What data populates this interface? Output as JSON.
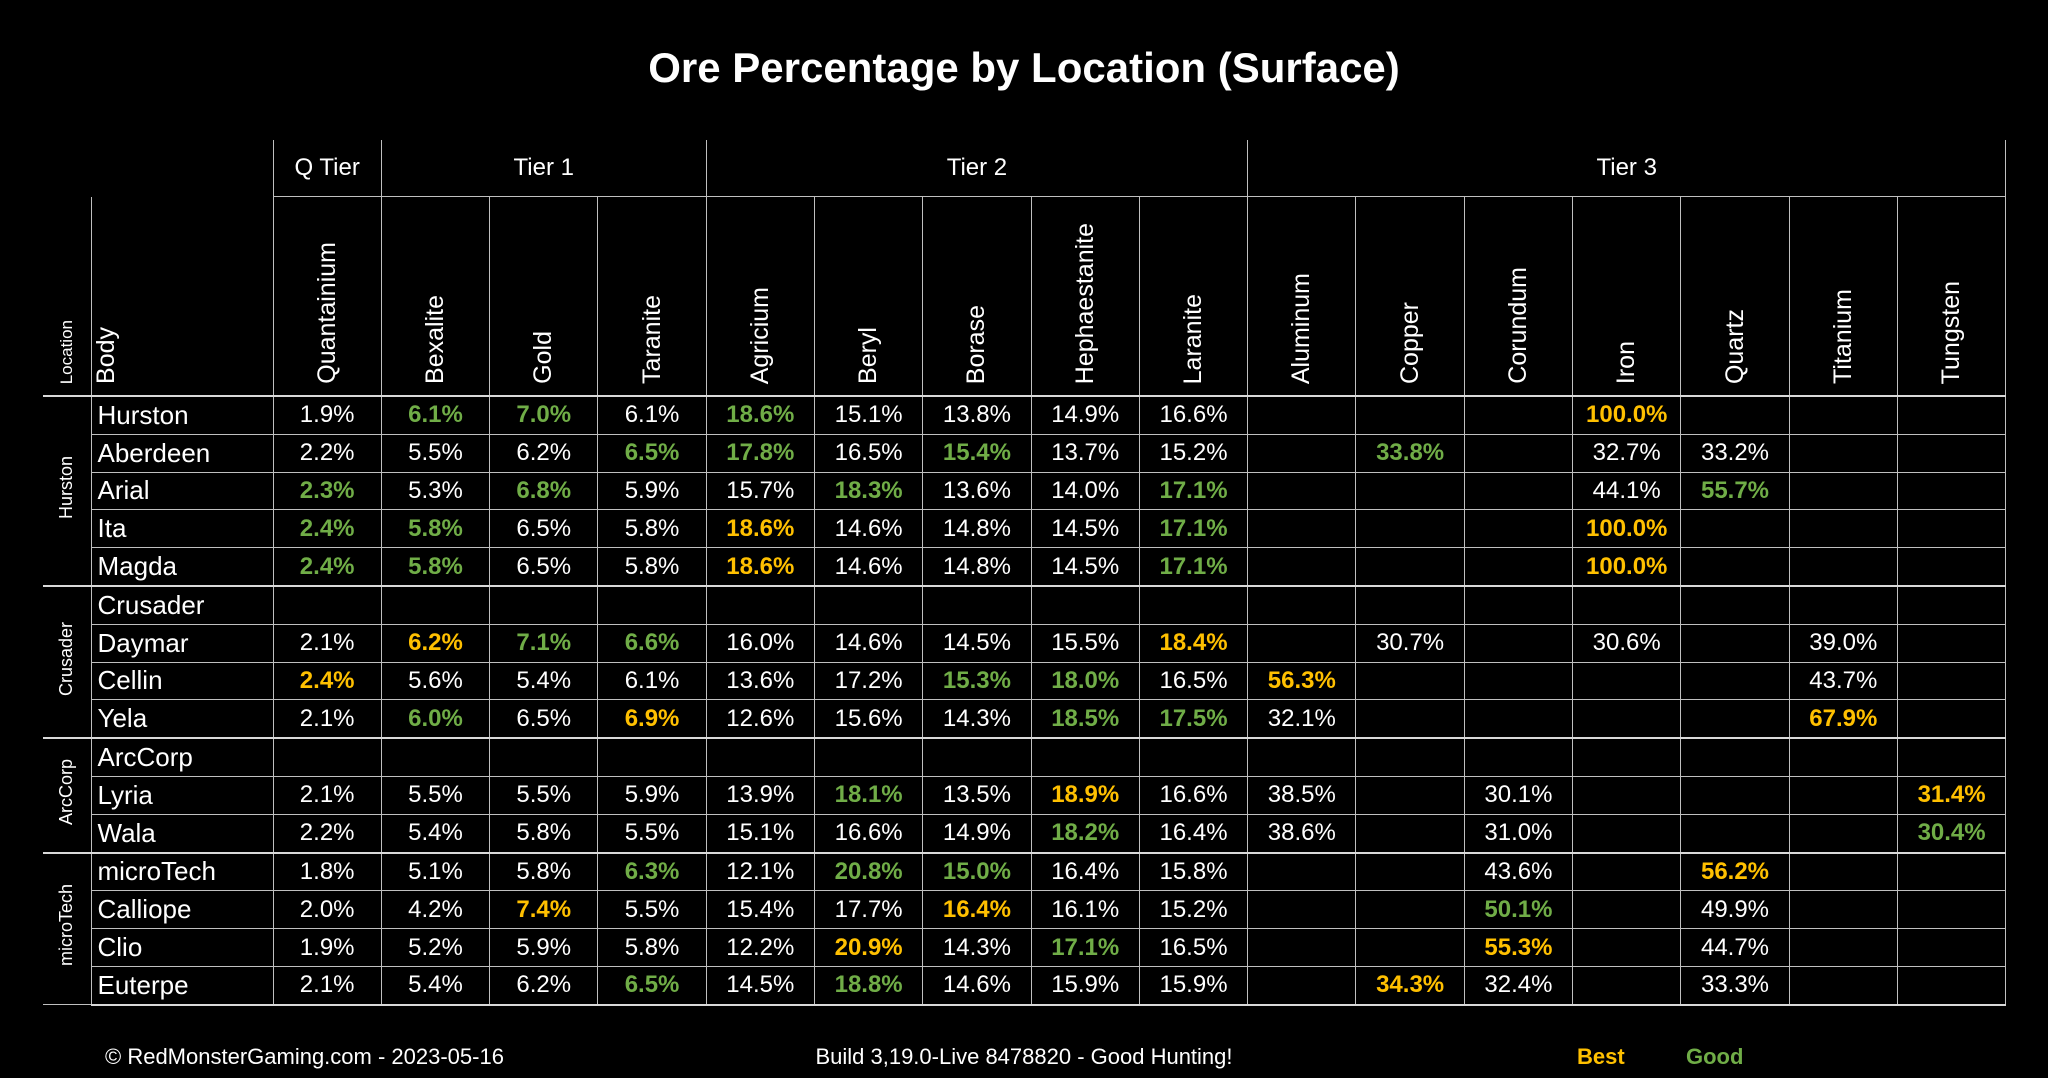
{
  "title": "Ore Percentage by Location (Surface)",
  "colors": {
    "best": "#ffc000",
    "good": "#70ad47",
    "background": "#000000",
    "text": "#ffffff"
  },
  "chart_data": {
    "type": "table",
    "tiers": [
      {
        "label": "Q Tier",
        "span": 1
      },
      {
        "label": "Tier 1",
        "span": 3
      },
      {
        "label": "Tier 2",
        "span": 5
      },
      {
        "label": "Tier 3",
        "span": 7
      }
    ],
    "location_header": "Location",
    "body_header": "Body",
    "columns": [
      "Quantainium",
      "Bexalite",
      "Gold",
      "Taranite",
      "Agricium",
      "Beryl",
      "Borase",
      "Hephaestanite",
      "Laranite",
      "Aluminum",
      "Copper",
      "Corundum",
      "Iron",
      "Quartz",
      "Titanium",
      "Tungsten"
    ],
    "groups": [
      {
        "location": "Hurston",
        "rows": [
          {
            "body": "Hurston",
            "cells": [
              "1.9%",
              {
                "v": "6.1%",
                "h": "good"
              },
              {
                "v": "7.0%",
                "h": "good"
              },
              "6.1%",
              {
                "v": "18.6%",
                "h": "good"
              },
              "15.1%",
              "13.8%",
              "14.9%",
              "16.6%",
              "",
              "",
              "",
              {
                "v": "100.0%",
                "h": "best"
              },
              "",
              "",
              ""
            ]
          },
          {
            "body": "Aberdeen",
            "cells": [
              "2.2%",
              "5.5%",
              "6.2%",
              {
                "v": "6.5%",
                "h": "good"
              },
              {
                "v": "17.8%",
                "h": "good"
              },
              "16.5%",
              {
                "v": "15.4%",
                "h": "good"
              },
              "13.7%",
              "15.2%",
              "",
              {
                "v": "33.8%",
                "h": "good"
              },
              "",
              "32.7%",
              "33.2%",
              "",
              ""
            ]
          },
          {
            "body": "Arial",
            "cells": [
              {
                "v": "2.3%",
                "h": "good"
              },
              "5.3%",
              {
                "v": "6.8%",
                "h": "good"
              },
              "5.9%",
              "15.7%",
              {
                "v": "18.3%",
                "h": "good"
              },
              "13.6%",
              "14.0%",
              {
                "v": "17.1%",
                "h": "good"
              },
              "",
              "",
              "",
              "44.1%",
              {
                "v": "55.7%",
                "h": "good"
              },
              "",
              ""
            ]
          },
          {
            "body": "Ita",
            "cells": [
              {
                "v": "2.4%",
                "h": "good"
              },
              {
                "v": "5.8%",
                "h": "good"
              },
              "6.5%",
              "5.8%",
              {
                "v": "18.6%",
                "h": "best"
              },
              "14.6%",
              "14.8%",
              "14.5%",
              {
                "v": "17.1%",
                "h": "good"
              },
              "",
              "",
              "",
              {
                "v": "100.0%",
                "h": "best"
              },
              "",
              "",
              ""
            ]
          },
          {
            "body": "Magda",
            "cells": [
              {
                "v": "2.4%",
                "h": "good"
              },
              {
                "v": "5.8%",
                "h": "good"
              },
              "6.5%",
              "5.8%",
              {
                "v": "18.6%",
                "h": "best"
              },
              "14.6%",
              "14.8%",
              "14.5%",
              {
                "v": "17.1%",
                "h": "good"
              },
              "",
              "",
              "",
              {
                "v": "100.0%",
                "h": "best"
              },
              "",
              "",
              ""
            ]
          }
        ]
      },
      {
        "location": "Crusader",
        "rows": [
          {
            "body": "Crusader",
            "cells": [
              "",
              "",
              "",
              "",
              "",
              "",
              "",
              "",
              "",
              "",
              "",
              "",
              "",
              "",
              "",
              ""
            ]
          },
          {
            "body": "Daymar",
            "cells": [
              "2.1%",
              {
                "v": "6.2%",
                "h": "best"
              },
              {
                "v": "7.1%",
                "h": "good"
              },
              {
                "v": "6.6%",
                "h": "good"
              },
              "16.0%",
              "14.6%",
              "14.5%",
              "15.5%",
              {
                "v": "18.4%",
                "h": "best"
              },
              "",
              "30.7%",
              "",
              "30.6%",
              "",
              "39.0%",
              ""
            ]
          },
          {
            "body": "Cellin",
            "cells": [
              {
                "v": "2.4%",
                "h": "best"
              },
              "5.6%",
              "5.4%",
              "6.1%",
              "13.6%",
              "17.2%",
              {
                "v": "15.3%",
                "h": "good"
              },
              {
                "v": "18.0%",
                "h": "good"
              },
              "16.5%",
              {
                "v": "56.3%",
                "h": "best"
              },
              "",
              "",
              "",
              "",
              "43.7%",
              ""
            ]
          },
          {
            "body": "Yela",
            "cells": [
              "2.1%",
              {
                "v": "6.0%",
                "h": "good"
              },
              "6.5%",
              {
                "v": "6.9%",
                "h": "best"
              },
              "12.6%",
              "15.6%",
              "14.3%",
              {
                "v": "18.5%",
                "h": "good"
              },
              {
                "v": "17.5%",
                "h": "good"
              },
              "32.1%",
              "",
              "",
              "",
              "",
              {
                "v": "67.9%",
                "h": "best"
              },
              ""
            ]
          }
        ]
      },
      {
        "location": "ArcCorp",
        "rows": [
          {
            "body": "ArcCorp",
            "cells": [
              "",
              "",
              "",
              "",
              "",
              "",
              "",
              "",
              "",
              "",
              "",
              "",
              "",
              "",
              "",
              ""
            ]
          },
          {
            "body": "Lyria",
            "cells": [
              "2.1%",
              "5.5%",
              "5.5%",
              "5.9%",
              "13.9%",
              {
                "v": "18.1%",
                "h": "good"
              },
              "13.5%",
              {
                "v": "18.9%",
                "h": "best"
              },
              "16.6%",
              "38.5%",
              "",
              "30.1%",
              "",
              "",
              "",
              {
                "v": "31.4%",
                "h": "best"
              }
            ]
          },
          {
            "body": "Wala",
            "cells": [
              "2.2%",
              "5.4%",
              "5.8%",
              "5.5%",
              "15.1%",
              "16.6%",
              "14.9%",
              {
                "v": "18.2%",
                "h": "good"
              },
              "16.4%",
              "38.6%",
              "",
              "31.0%",
              "",
              "",
              "",
              {
                "v": "30.4%",
                "h": "good"
              }
            ]
          }
        ]
      },
      {
        "location": "microTech",
        "rows": [
          {
            "body": "microTech",
            "cells": [
              "1.8%",
              "5.1%",
              "5.8%",
              {
                "v": "6.3%",
                "h": "good"
              },
              "12.1%",
              {
                "v": "20.8%",
                "h": "good"
              },
              {
                "v": "15.0%",
                "h": "good"
              },
              "16.4%",
              "15.8%",
              "",
              "",
              "43.6%",
              "",
              {
                "v": "56.2%",
                "h": "best"
              },
              "",
              ""
            ]
          },
          {
            "body": "Calliope",
            "cells": [
              "2.0%",
              "4.2%",
              {
                "v": "7.4%",
                "h": "best"
              },
              "5.5%",
              "15.4%",
              "17.7%",
              {
                "v": "16.4%",
                "h": "best"
              },
              "16.1%",
              "15.2%",
              "",
              "",
              {
                "v": "50.1%",
                "h": "good"
              },
              "",
              "49.9%",
              "",
              ""
            ]
          },
          {
            "body": "Clio",
            "cells": [
              "1.9%",
              "5.2%",
              "5.9%",
              "5.8%",
              "12.2%",
              {
                "v": "20.9%",
                "h": "best"
              },
              "14.3%",
              {
                "v": "17.1%",
                "h": "good"
              },
              "16.5%",
              "",
              "",
              {
                "v": "55.3%",
                "h": "best"
              },
              "",
              "44.7%",
              "",
              ""
            ]
          },
          {
            "body": "Euterpe",
            "cells": [
              "2.1%",
              "5.4%",
              "6.2%",
              {
                "v": "6.5%",
                "h": "good"
              },
              "14.5%",
              {
                "v": "18.8%",
                "h": "good"
              },
              "14.6%",
              "15.9%",
              "15.9%",
              "",
              {
                "v": "34.3%",
                "h": "best"
              },
              "32.4%",
              "",
              "33.3%",
              "",
              ""
            ]
          }
        ]
      }
    ]
  },
  "footer": {
    "copyright": "© RedMonsterGaming.com - 2023-05-16",
    "build": "Build 3,19.0-Live 8478820 - Good Hunting!",
    "legend_best": "Best",
    "legend_good": "Good"
  }
}
